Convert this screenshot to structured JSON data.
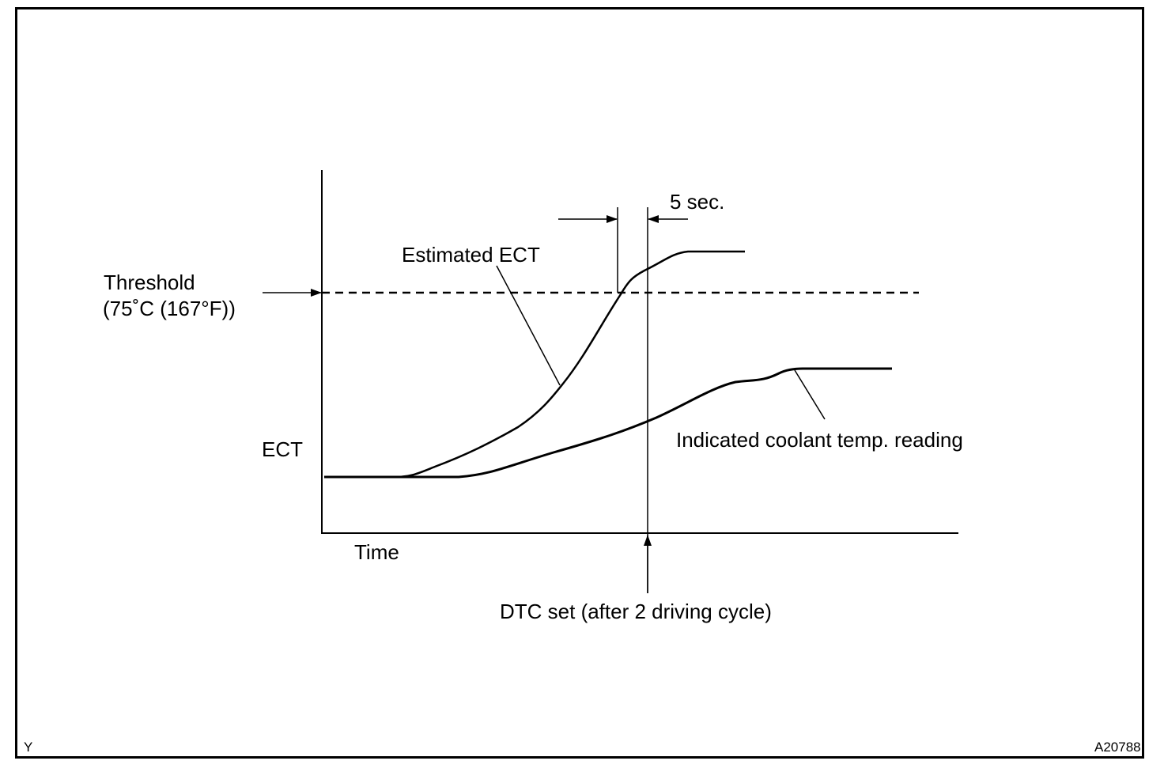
{
  "diagram": {
    "threshold_label": "Threshold",
    "threshold_value": "(75˚C (167°F))",
    "y_axis_label": "ECT",
    "x_axis_label": "Time",
    "interval_label": "5 sec.",
    "estimated_curve_label": "Estimated ECT",
    "indicated_curve_label": "Indicated coolant temp. reading",
    "event_label": "DTC set (after 2 driving cycle)",
    "corner_left": "Y",
    "figure_id": "A20788"
  }
}
